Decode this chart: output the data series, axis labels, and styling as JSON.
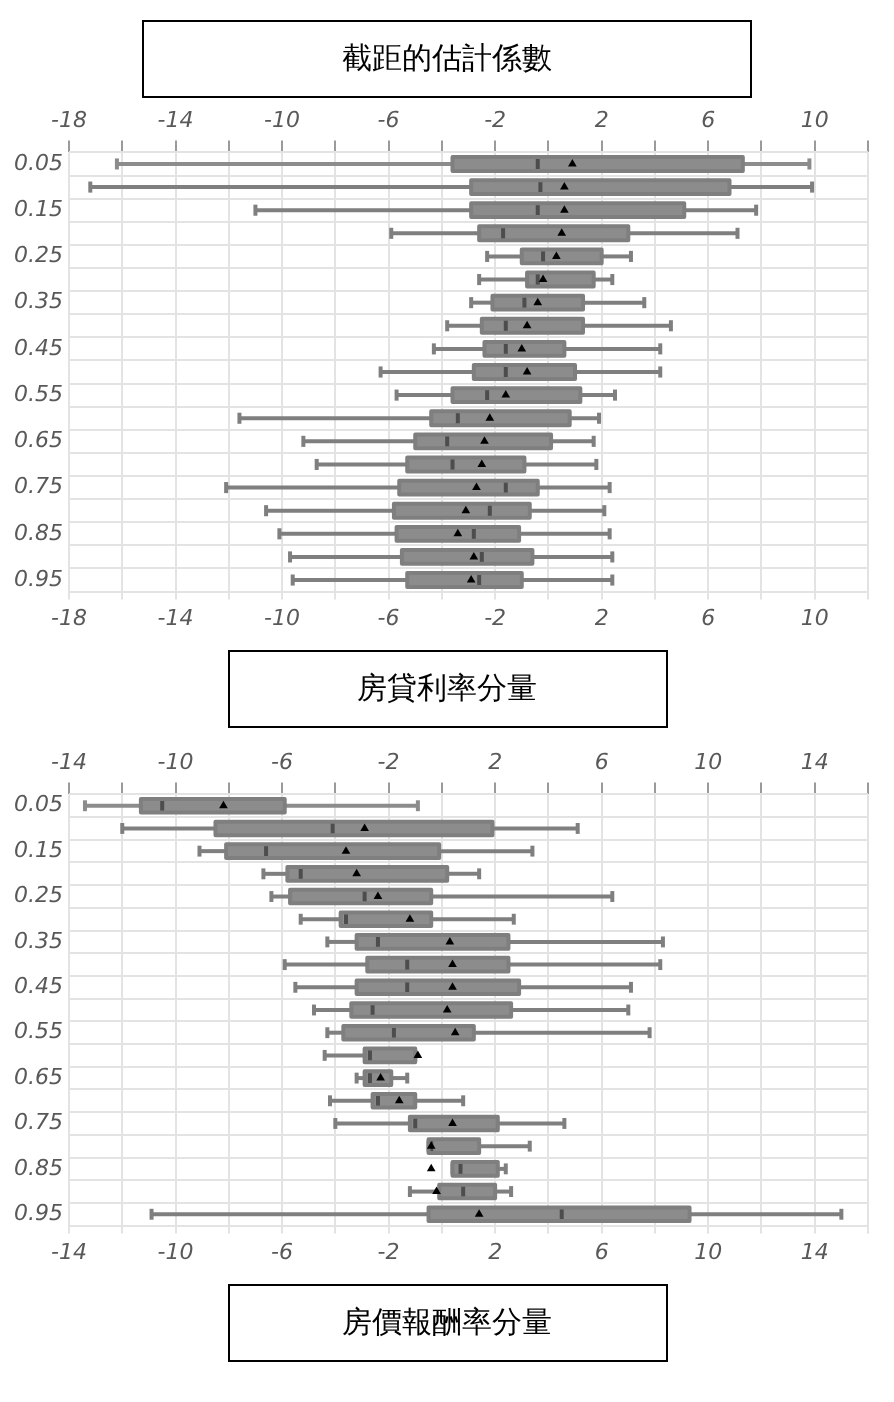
{
  "chart_data": [
    {
      "type": "box",
      "title": "截距的估計係數",
      "xlabel": "房貸利率分量",
      "orientation": "horizontal",
      "color": "#8c8c8c",
      "grid": true,
      "legend": false,
      "marker": "triangle",
      "categories": [
        "0.05",
        null,
        "0.15",
        null,
        "0.25",
        null,
        "0.35",
        null,
        "0.45",
        null,
        "0.55",
        null,
        "0.65",
        null,
        "0.75",
        null,
        "0.85",
        null,
        "0.95"
      ],
      "xlim": [
        -18,
        12
      ],
      "xticks": [
        -18,
        {
          "value": -16,
          "label": null
        },
        -14,
        {
          "value": -12,
          "label": null
        },
        -10,
        {
          "value": -8,
          "label": null
        },
        -6,
        {
          "value": -4,
          "label": null
        },
        -2,
        {
          "value": 0,
          "label": null
        },
        2,
        {
          "value": 4,
          "label": null
        },
        6,
        {
          "value": 8,
          "label": null
        },
        10,
        {
          "value": 12,
          "label": null
        }
      ],
      "x2lim": [
        -18,
        12
      ],
      "x2ticks": [
        -18,
        {
          "value": -16,
          "label": null
        },
        -14,
        {
          "value": -12,
          "label": null
        },
        -10,
        {
          "value": -8,
          "label": null
        },
        -6,
        {
          "value": -4,
          "label": null
        },
        -2,
        {
          "value": 0,
          "label": null
        },
        2,
        {
          "value": 4,
          "label": null
        },
        6,
        {
          "value": 8,
          "label": null
        },
        10,
        {
          "value": 12,
          "label": null
        }
      ],
      "boxes": [
        {
          "low": -16.2,
          "q1": -3.6,
          "median": -0.4,
          "q3": 7.3,
          "high": 9.8,
          "mean": 0.9
        },
        {
          "low": -17.2,
          "q1": -2.9,
          "median": -0.3,
          "q3": 6.8,
          "high": 9.9,
          "mean": 0.6
        },
        {
          "low": -11.0,
          "q1": -2.9,
          "median": -0.4,
          "q3": 5.1,
          "high": 7.8,
          "mean": 0.6
        },
        {
          "low": -5.9,
          "q1": -2.6,
          "median": -1.7,
          "q3": 3.0,
          "high": 7.1,
          "mean": 0.5
        },
        {
          "low": -2.3,
          "q1": -1.0,
          "median": -0.2,
          "q3": 2.0,
          "high": 3.1,
          "mean": 0.3
        },
        {
          "low": -2.6,
          "q1": -0.8,
          "median": -0.4,
          "q3": 1.7,
          "high": 2.4,
          "mean": -0.2
        },
        {
          "low": -2.9,
          "q1": -2.1,
          "median": -0.9,
          "q3": 1.3,
          "high": 3.6,
          "mean": -0.4
        },
        {
          "low": -3.8,
          "q1": -2.5,
          "median": -1.6,
          "q3": 1.3,
          "high": 4.6,
          "mean": -0.8
        },
        {
          "low": -4.3,
          "q1": -2.4,
          "median": -1.6,
          "q3": 0.6,
          "high": 4.2,
          "mean": -1.0
        },
        {
          "low": -6.3,
          "q1": -2.8,
          "median": -1.6,
          "q3": 1.0,
          "high": 4.2,
          "mean": -0.8
        },
        {
          "low": -5.7,
          "q1": -3.6,
          "median": -2.3,
          "q3": 1.2,
          "high": 2.5,
          "mean": -1.6
        },
        {
          "low": -11.6,
          "q1": -4.4,
          "median": -3.4,
          "q3": 0.8,
          "high": 1.9,
          "mean": -2.2
        },
        {
          "low": -9.2,
          "q1": -5.0,
          "median": -3.8,
          "q3": 0.1,
          "high": 1.7,
          "mean": -2.4
        },
        {
          "low": -8.7,
          "q1": -5.3,
          "median": -3.6,
          "q3": -0.9,
          "high": 1.8,
          "mean": -2.5
        },
        {
          "low": -12.1,
          "q1": -5.6,
          "median": -1.6,
          "q3": -0.4,
          "high": 2.3,
          "mean": -2.7
        },
        {
          "low": -10.6,
          "q1": -5.8,
          "median": -2.2,
          "q3": -0.7,
          "high": 2.1,
          "mean": -3.1
        },
        {
          "low": -10.1,
          "q1": -5.7,
          "median": -2.8,
          "q3": -1.1,
          "high": 2.3,
          "mean": -3.4
        },
        {
          "low": -9.7,
          "q1": -5.5,
          "median": -2.5,
          "q3": -0.6,
          "high": 2.4,
          "mean": -2.8
        },
        {
          "low": -9.6,
          "q1": -5.3,
          "median": -2.6,
          "q3": -1.0,
          "high": 2.4,
          "mean": -2.9
        }
      ]
    },
    {
      "type": "box",
      "xlabel": "房價報酬率分量",
      "orientation": "horizontal",
      "color": "#8c8c8c",
      "grid": true,
      "legend": false,
      "marker": "triangle",
      "categories": [
        "0.05",
        null,
        "0.15",
        null,
        "0.25",
        null,
        "0.35",
        null,
        "0.45",
        null,
        "0.55",
        null,
        "0.65",
        null,
        "0.75",
        null,
        "0.85",
        null,
        "0.95"
      ],
      "xlim": [
        -14,
        16
      ],
      "xticks": [
        -14,
        {
          "value": -12,
          "label": null
        },
        -10,
        {
          "value": -8,
          "label": null
        },
        -6,
        {
          "value": -4,
          "label": null
        },
        -2,
        {
          "value": 0,
          "label": null
        },
        2,
        {
          "value": 4,
          "label": null
        },
        6,
        {
          "value": 8,
          "label": null
        },
        10,
        {
          "value": 12,
          "label": null
        },
        14,
        {
          "value": 16,
          "label": null
        }
      ],
      "x2lim": [
        -14,
        16
      ],
      "x2ticks": [
        -14,
        {
          "value": -12,
          "label": null
        },
        -10,
        {
          "value": -8,
          "label": null
        },
        -6,
        {
          "value": -4,
          "label": null
        },
        -2,
        {
          "value": 0,
          "label": null
        },
        2,
        {
          "value": 4,
          "label": null
        },
        6,
        {
          "value": 8,
          "label": null
        },
        10,
        {
          "value": 12,
          "label": null
        },
        14,
        {
          "value": 16,
          "label": null
        }
      ],
      "boxes": [
        {
          "low": -13.4,
          "q1": -11.3,
          "median": -10.5,
          "q3": -5.9,
          "high": -0.9,
          "mean": -8.2
        },
        {
          "low": -12.0,
          "q1": -8.5,
          "median": -4.1,
          "q3": 1.9,
          "high": 5.1,
          "mean": -2.9
        },
        {
          "low": -9.1,
          "q1": -8.1,
          "median": -6.6,
          "q3": -0.1,
          "high": 3.4,
          "mean": -3.6
        },
        {
          "low": -6.7,
          "q1": -5.8,
          "median": -5.3,
          "q3": 0.2,
          "high": 1.4,
          "mean": -3.2
        },
        {
          "low": -6.4,
          "q1": -5.7,
          "median": -2.9,
          "q3": -0.4,
          "high": 6.4,
          "mean": -2.4
        },
        {
          "low": -5.3,
          "q1": -3.8,
          "median": -3.6,
          "q3": -0.4,
          "high": 2.7,
          "mean": -1.2
        },
        {
          "low": -4.3,
          "q1": -3.2,
          "median": -2.4,
          "q3": 2.5,
          "high": 8.3,
          "mean": 0.3
        },
        {
          "low": -5.9,
          "q1": -2.8,
          "median": -1.3,
          "q3": 2.5,
          "high": 8.2,
          "mean": 0.4
        },
        {
          "low": -5.5,
          "q1": -3.2,
          "median": -1.3,
          "q3": 2.9,
          "high": 7.1,
          "mean": 0.4
        },
        {
          "low": -4.8,
          "q1": -3.4,
          "median": -2.6,
          "q3": 2.6,
          "high": 7.0,
          "mean": 0.2
        },
        {
          "low": -4.3,
          "q1": -3.7,
          "median": -1.8,
          "q3": 1.2,
          "high": 7.8,
          "mean": 0.5
        },
        {
          "low": -4.4,
          "q1": -2.9,
          "median": -2.7,
          "q3": -1.0,
          "high": -1.0,
          "mean": -0.9
        },
        {
          "low": -3.2,
          "q1": -2.9,
          "median": -2.7,
          "q3": -1.9,
          "high": -1.3,
          "mean": -2.3
        },
        {
          "low": -4.2,
          "q1": -2.6,
          "median": -2.4,
          "q3": -1.0,
          "high": 0.8,
          "mean": -1.6
        },
        {
          "low": -4.0,
          "q1": -1.2,
          "median": -1.0,
          "q3": 2.1,
          "high": 4.6,
          "mean": 0.4
        },
        {
          "low": -0.5,
          "q1": -0.5,
          "median": -0.4,
          "q3": 1.4,
          "high": 3.3,
          "mean": -0.4
        },
        {
          "low": 0.4,
          "q1": 0.4,
          "median": 0.7,
          "q3": 2.1,
          "high": 2.4,
          "mean": -0.4
        },
        {
          "low": -1.2,
          "q1": -0.1,
          "median": 0.8,
          "q3": 2.0,
          "high": 2.6,
          "mean": -0.2
        },
        {
          "low": -10.9,
          "q1": -0.5,
          "median": 4.5,
          "q3": 9.3,
          "high": 15.0,
          "mean": 1.4
        }
      ]
    }
  ]
}
